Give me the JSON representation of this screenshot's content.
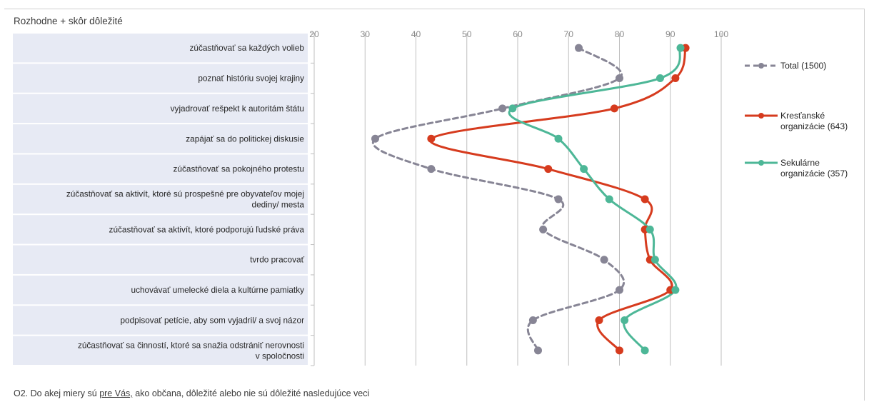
{
  "title": "Rozhodne + skôr dôležité",
  "footnote": {
    "prefix": "O2. Do akej miery sú ",
    "underlined": "pre Vás,",
    "suffix": " ako občana, dôležité alebo nie sú dôležité nasledujúce veci"
  },
  "colors": {
    "total": "#878595",
    "krestanske": "#D63B1E",
    "sekularne": "#4DB797",
    "label_panel": "#E7EAF4",
    "grid": "#BFBFBF"
  },
  "chart_data": {
    "type": "line",
    "title": "Rozhodne + skôr dôležité",
    "orientation": "horizontal-values",
    "x_axis": {
      "min": 20,
      "max": 100,
      "ticks": [
        20,
        30,
        40,
        50,
        60,
        70,
        80,
        90,
        100
      ]
    },
    "categories": [
      [
        "zúčastňovať sa každých volieb"
      ],
      [
        "poznať históriu svojej krajiny"
      ],
      [
        "vyjadrovať rešpekt k autoritám štátu"
      ],
      [
        "zapájať sa do politickej diskusie"
      ],
      [
        "zúčastňovať sa pokojného protestu"
      ],
      [
        "zúčastňovať sa aktivít, ktoré sú prospešné pre obyvateľov mojej",
        "dediny/ mesta"
      ],
      [
        "zúčastňovať sa aktivít, ktoré podporujú ľudské práva"
      ],
      [
        "tvrdo pracovať"
      ],
      [
        "uchovávať umelecké diela a kultúrne pamiatky"
      ],
      [
        "podpisovať petície, aby som vyjadril/ a svoj názor"
      ],
      [
        "zúčastňovať sa činností, ktoré sa snažia odstrániť nerovnosti",
        "v spoločnosti"
      ]
    ],
    "series": [
      {
        "key": "total",
        "legend": [
          "Total (1500)"
        ],
        "dashed": true,
        "values": [
          72,
          80,
          57,
          32,
          43,
          68,
          65,
          77,
          80,
          63,
          64
        ]
      },
      {
        "key": "krestanske",
        "legend": [
          "Kresťanské",
          "organizácie (643)"
        ],
        "dashed": false,
        "values": [
          93,
          91,
          79,
          43,
          66,
          85,
          85,
          86,
          90,
          76,
          80
        ]
      },
      {
        "key": "sekularne",
        "legend": [
          "Sekulárne",
          "organizácie (357)"
        ],
        "dashed": false,
        "values": [
          92,
          88,
          59,
          68,
          73,
          78,
          86,
          87,
          91,
          81,
          85
        ]
      }
    ]
  }
}
